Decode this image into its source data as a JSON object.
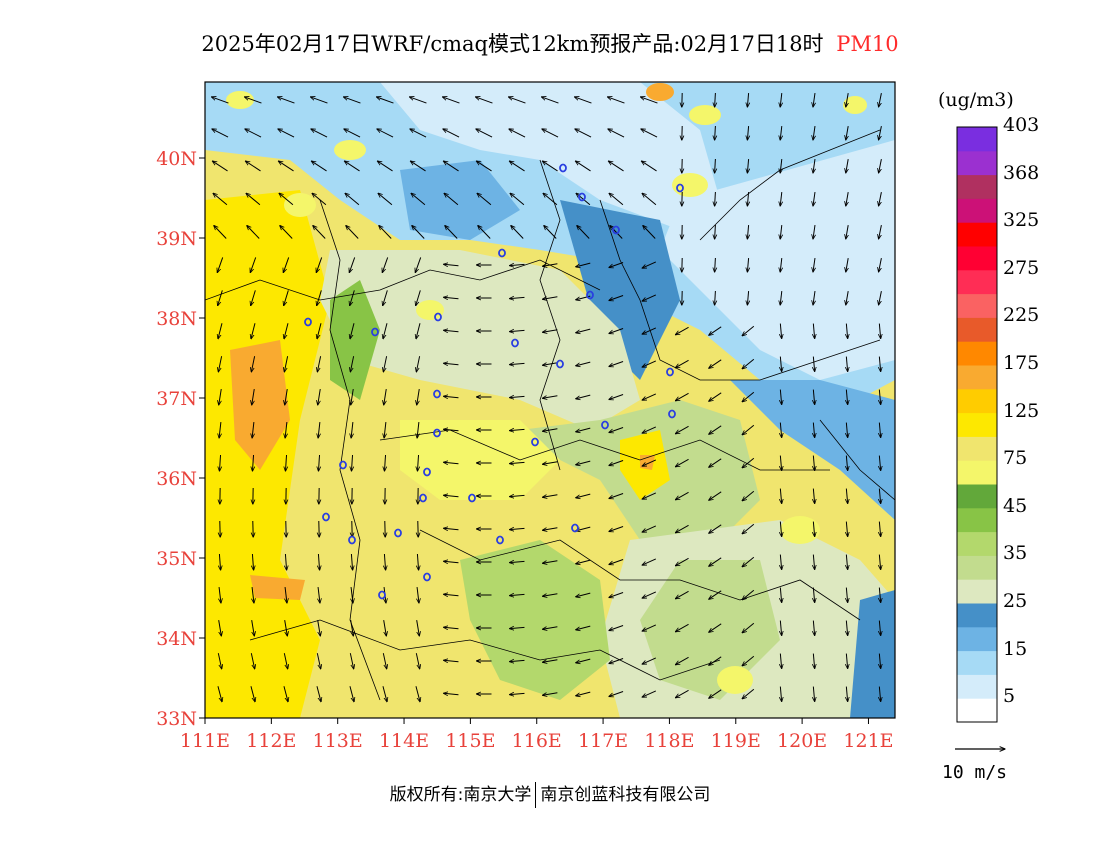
{
  "title": {
    "main": "2025年02月17日WRF/cmaq模式12km预报产品:02月17日18时",
    "pollutant": "PM10",
    "pollutant_color": "#ff2b2b"
  },
  "map": {
    "lon_labels": [
      "111E",
      "112E",
      "113E",
      "114E",
      "115E",
      "116E",
      "117E",
      "118E",
      "119E",
      "120E",
      "121E"
    ],
    "lat_labels": [
      "33N",
      "34N",
      "35N",
      "36N",
      "37N",
      "38N",
      "39N",
      "40N"
    ],
    "axis_label_color": "#e8423b",
    "lon_range": [
      111,
      121.4
    ],
    "lat_range": [
      33,
      40.95
    ],
    "city_marker_color": "#2a3fe0"
  },
  "colorbar": {
    "unit": "(ug/m3)",
    "colors": [
      "#ffffff",
      "#d4ecfa",
      "#a6daf5",
      "#6db3e4",
      "#4590c8",
      "#dde8c0",
      "#c2dc8e",
      "#b3d86c",
      "#88c446",
      "#62a83a",
      "#f4f66a",
      "#f0e56e",
      "#fde800",
      "#ffcc00",
      "#f9aa30",
      "#ff8800",
      "#e85a2a",
      "#fa6262",
      "#ff2d55",
      "#ff0033",
      "#ff0000",
      "#cc1177",
      "#b03060",
      "#9b30d0",
      "#7a2ee0"
    ],
    "labels": [
      "5",
      "15",
      "25",
      "35",
      "45",
      "75",
      "125",
      "175",
      "225",
      "275",
      "325",
      "368",
      "403"
    ]
  },
  "wind": {
    "label": "10 m/s"
  },
  "copyright": {
    "left": "版权所有:南京大学",
    "right": "南京创蓝科技有限公司"
  }
}
